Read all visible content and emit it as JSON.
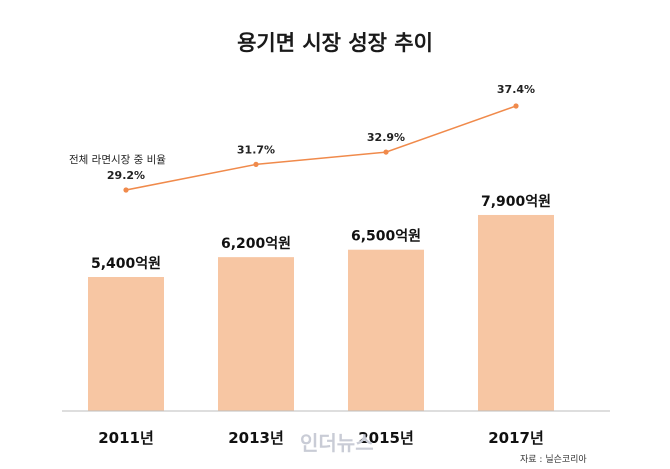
{
  "chart_data": {
    "type": "bar",
    "title": "용기면 시장 성장 추이",
    "categories": [
      "2011년",
      "2013년",
      "2015년",
      "2017년"
    ],
    "series": [
      {
        "values": [
          5400,
          6200,
          6500,
          7900
        ],
        "data_labels": [
          "5,400억원",
          "6,200억원",
          "6,500억원",
          "7,900억원"
        ],
        "color": "#f7c6a3"
      },
      {
        "name": "전체 라면시장 중 비율",
        "type": "line",
        "values": [
          29.2,
          31.7,
          32.9,
          37.4
        ],
        "data_labels": [
          "29.2%",
          "31.7%",
          "32.9%",
          "37.4%"
        ],
        "color": "#f08a4b"
      }
    ],
    "ylim": [
      0,
      9000
    ],
    "line_ylim": [
      0,
      40
    ],
    "grid": false,
    "legend": "top-left",
    "source": "자료 : 닐슨코리아"
  },
  "watermark": "인더뉴스",
  "colors": {
    "bar": "#f7c6a3",
    "line": "#f08a4b",
    "axis": "#bdbdbd"
  }
}
